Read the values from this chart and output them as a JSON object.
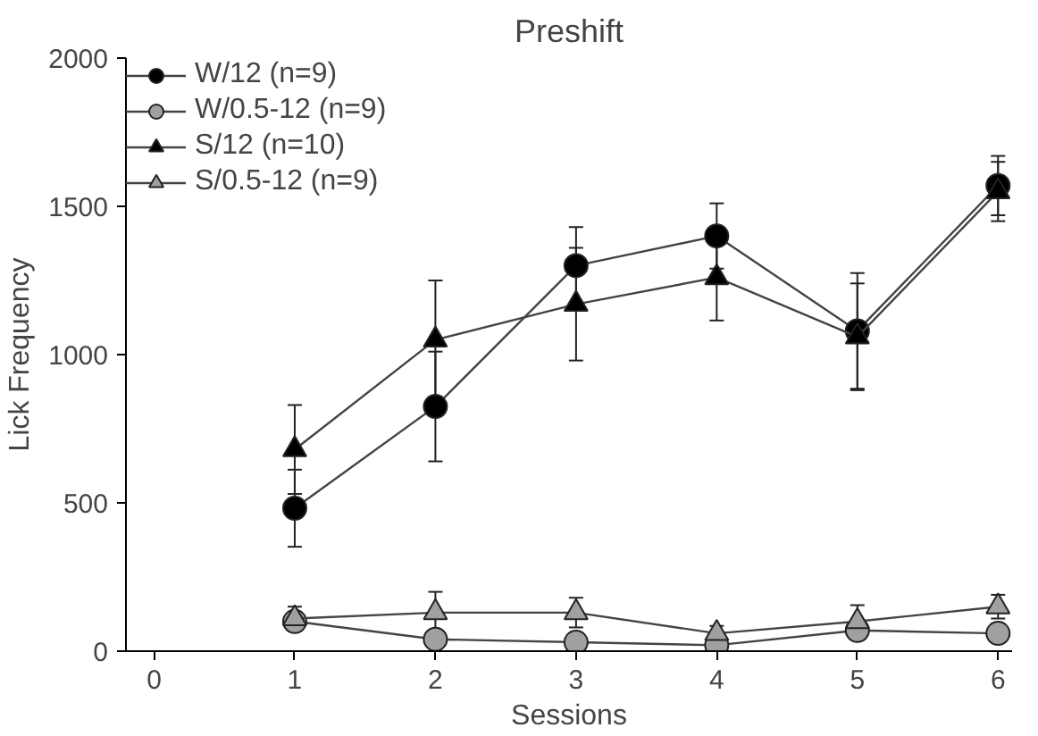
{
  "chart_data": {
    "type": "line",
    "title": "Preshift",
    "xlabel": "Sessions",
    "ylabel": "Lick Frequency",
    "x": [
      1,
      2,
      3,
      4,
      5,
      6
    ],
    "xlim": [
      -0.2,
      6.1
    ],
    "xticks": [
      0,
      1,
      2,
      3,
      4,
      5,
      6
    ],
    "ylim": [
      0,
      2000
    ],
    "yticks": [
      0,
      500,
      1000,
      1500,
      2000
    ],
    "grid": false,
    "legend": "top left",
    "series": [
      {
        "name": "W/12 (n=9)",
        "color": "#000000",
        "marker": "circle",
        "values": [
          482,
          825,
          1300,
          1400,
          1080,
          1570
        ],
        "errors": [
          130,
          185,
          130,
          110,
          195,
          100
        ]
      },
      {
        "name": "W/0.5-12 (n=9)",
        "color": "#a0a0a0",
        "marker": "circle",
        "values": [
          100,
          40,
          30,
          20,
          70,
          60
        ],
        "errors": [
          20,
          15,
          15,
          10,
          20,
          15
        ]
      },
      {
        "name": "S/12 (n=10)",
        "color": "#000000",
        "marker": "triangle",
        "values": [
          680,
          1050,
          1170,
          1260,
          1060,
          1550
        ],
        "errors": [
          150,
          200,
          190,
          145,
          180,
          100
        ]
      },
      {
        "name": "S/0.5-12 (n=9)",
        "color": "#a0a0a0",
        "marker": "triangle",
        "values": [
          110,
          130,
          130,
          60,
          100,
          150
        ],
        "errors": [
          40,
          70,
          50,
          25,
          55,
          40
        ]
      }
    ]
  }
}
